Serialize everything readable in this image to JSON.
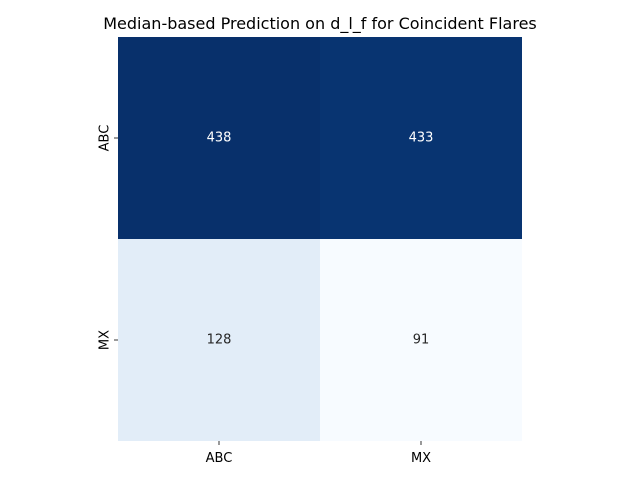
{
  "chart_data": {
    "type": "heatmap",
    "title": "Median-based Prediction on d_l_f for Coincident Flares",
    "xlabel": "",
    "ylabel": "",
    "x_categories": [
      "ABC",
      "MX"
    ],
    "y_categories": [
      "ABC",
      "MX"
    ],
    "values": [
      [
        438,
        433
      ],
      [
        128,
        91
      ]
    ],
    "colormap": "Blues",
    "colorbar": false,
    "grid": false,
    "annotations": true,
    "colors": {
      "min": "#f7fbff",
      "mid": "#6baed6",
      "max": "#08306b",
      "text_dark": "#262626",
      "text_light": "#ffffff"
    }
  }
}
